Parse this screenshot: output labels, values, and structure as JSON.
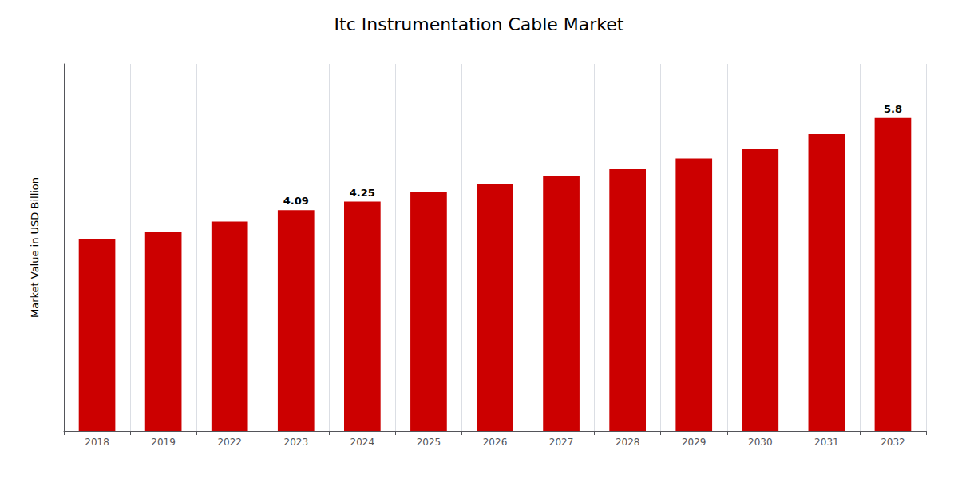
{
  "chart_data": {
    "type": "bar",
    "title": "Itc Instrumentation Cable Market",
    "ylabel": "Market Value in USD Billion",
    "categories": [
      "2018",
      "2019",
      "2022",
      "2023",
      "2024",
      "2025",
      "2026",
      "2027",
      "2028",
      "2029",
      "2030",
      "2031",
      "2032"
    ],
    "values": [
      3.55,
      3.68,
      3.88,
      4.09,
      4.25,
      4.42,
      4.58,
      4.72,
      4.85,
      5.05,
      5.22,
      5.5,
      5.8
    ],
    "value_labels": [
      null,
      null,
      null,
      "4.09",
      "4.25",
      null,
      null,
      null,
      null,
      null,
      null,
      null,
      "5.8"
    ],
    "color": "#CC0000",
    "ylim": [
      0,
      6.8
    ],
    "tick_labels": "x",
    "grid": "x"
  }
}
